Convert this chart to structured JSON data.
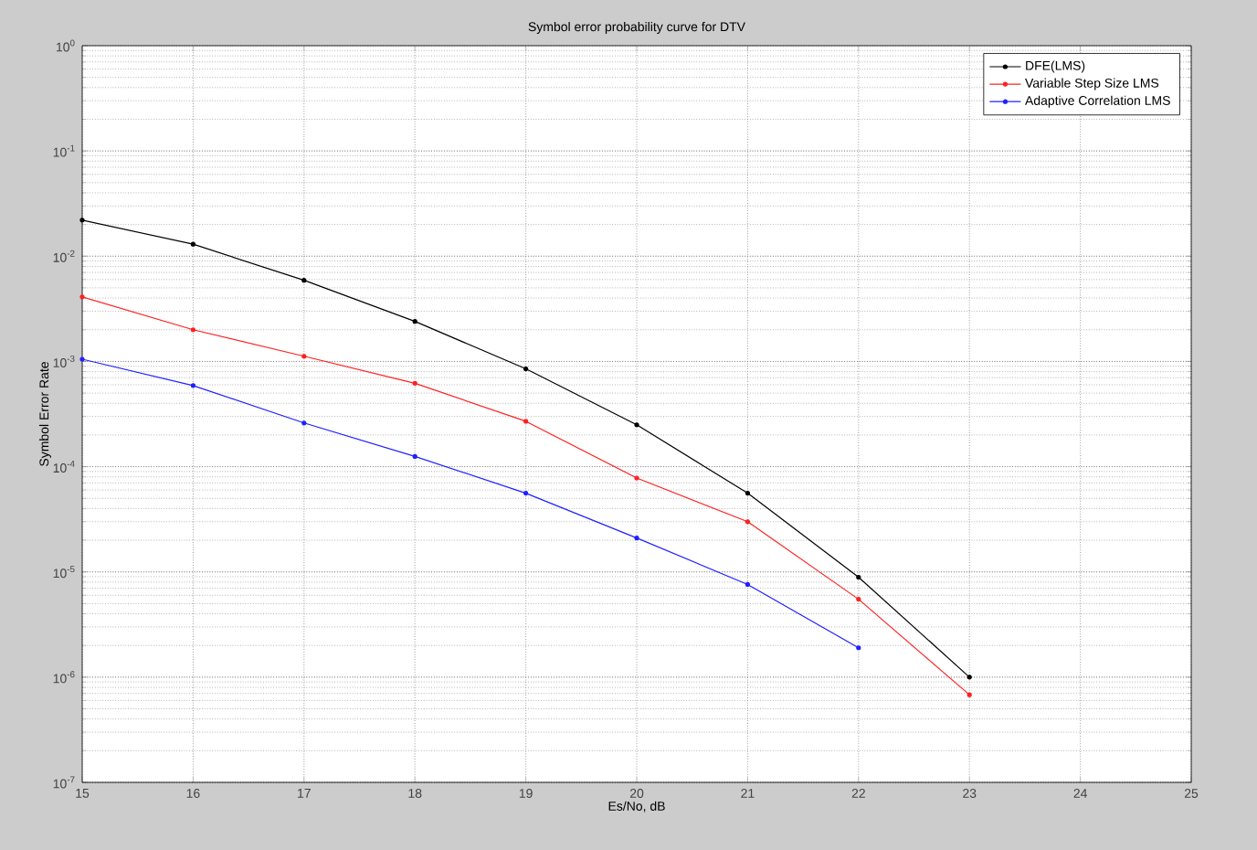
{
  "chart_data": {
    "type": "line",
    "title": "Symbol error probability curve for DTV",
    "xlabel": "Es/No, dB",
    "ylabel": "Symbol Error Rate",
    "x": [
      15,
      16,
      17,
      18,
      19,
      20,
      21,
      22,
      23
    ],
    "series": [
      {
        "name": "DFE(LMS)",
        "color": "#000000",
        "values": [
          0.022,
          0.013,
          0.0059,
          0.0024,
          0.00085,
          0.00025,
          5.6e-05,
          8.9e-06,
          1e-06
        ]
      },
      {
        "name": "Variable Step Size LMS",
        "color": "#ff2020",
        "values": [
          0.0041,
          0.002,
          0.00112,
          0.00062,
          0.00027,
          7.8e-05,
          3e-05,
          5.5e-06,
          6.8e-07
        ]
      },
      {
        "name": "Adaptive Correlation LMS",
        "color": "#2020ff",
        "values": [
          0.00105,
          0.00059,
          0.00026,
          0.000125,
          5.6e-05,
          2.1e-05,
          7.6e-06,
          1.9e-06,
          null
        ]
      }
    ],
    "xlim": [
      15,
      25
    ],
    "ylim": [
      1e-07,
      1
    ],
    "xticks": [
      15,
      16,
      17,
      18,
      19,
      20,
      21,
      22,
      23,
      24,
      25
    ],
    "yticks": [
      {
        "value": 1e-07,
        "label": "10$^{-7}$"
      },
      {
        "value": 1e-06,
        "label": "10$^{-6}$"
      },
      {
        "value": 1e-05,
        "label": "10$^{-5}$"
      },
      {
        "value": 0.0001,
        "label": "10$^{-4}$"
      },
      {
        "value": 0.001,
        "label": "10$^{-3}$"
      },
      {
        "value": 0.01,
        "label": "10$^{-2}$"
      },
      {
        "value": 0.1,
        "label": "10$^{-1}$"
      },
      {
        "value": 1,
        "label": "10$^{0}$"
      }
    ],
    "log": "y",
    "grid": true,
    "legend": "top right",
    "marker": "circle",
    "line_style": "solid"
  }
}
